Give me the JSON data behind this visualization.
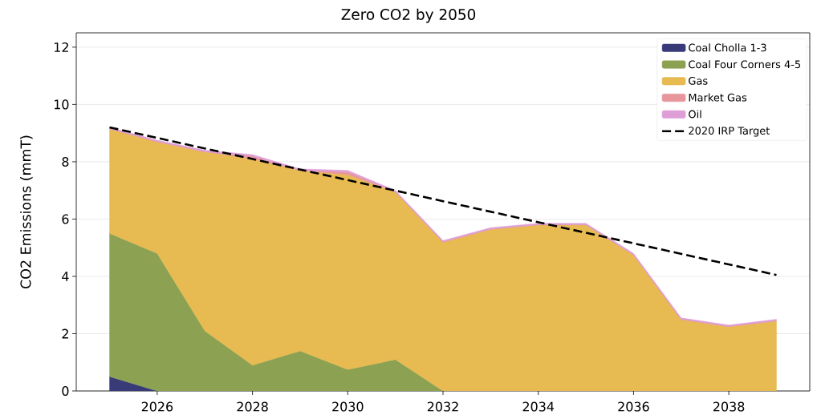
{
  "chart_data": {
    "type": "area",
    "stacked": true,
    "title": "Zero CO2 by 2050",
    "ylabel": "CO2 Emissions (mmT)",
    "x": [
      2025,
      2026,
      2027,
      2028,
      2029,
      2030,
      2031,
      2032,
      2033,
      2034,
      2035,
      2036,
      2037,
      2038,
      2039
    ],
    "series": [
      {
        "name": "Coal Cholla 1-3",
        "color": "#393b79",
        "values": [
          0.5,
          0,
          0,
          0,
          0,
          0,
          0,
          0,
          0,
          0,
          0,
          0,
          0,
          0,
          0
        ]
      },
      {
        "name": "Coal Four Corners 4-5",
        "color": "#8ca252",
        "values": [
          5.0,
          4.8,
          2.1,
          0.9,
          1.4,
          0.75,
          1.1,
          0,
          0,
          0,
          0,
          0,
          0,
          0,
          0
        ]
      },
      {
        "name": "Gas",
        "color": "#e7ba52",
        "values": [
          3.65,
          3.9,
          6.25,
          7.2,
          6.3,
          6.8,
          5.85,
          5.2,
          5.65,
          5.8,
          5.8,
          4.75,
          2.5,
          2.25,
          2.45
        ]
      },
      {
        "name": "Market Gas",
        "color": "#e7969c",
        "values": [
          0,
          0,
          0,
          0.1,
          0,
          0.1,
          0,
          0,
          0,
          0,
          0,
          0,
          0,
          0,
          0
        ]
      },
      {
        "name": "Oil",
        "color": "#de9ed6",
        "values": [
          0.05,
          0.05,
          0.05,
          0.05,
          0.05,
          0.05,
          0.05,
          0.05,
          0.05,
          0.05,
          0.05,
          0.05,
          0.05,
          0.05,
          0.05
        ]
      },
      {
        "name": "2020 IRP Target",
        "type": "line",
        "color": "#000000",
        "line_style": "dashed",
        "x": [
          2025,
          2039
        ],
        "values": [
          9.2,
          4.05
        ]
      }
    ],
    "xlim": [
      2024.3,
      2039.7
    ],
    "ylim": [
      0,
      12.5
    ],
    "xticks": [
      2026,
      2028,
      2030,
      2032,
      2034,
      2036,
      2038
    ],
    "yticks": [
      0,
      2,
      4,
      6,
      8,
      10,
      12
    ],
    "grid": "y",
    "legend": "top right"
  }
}
